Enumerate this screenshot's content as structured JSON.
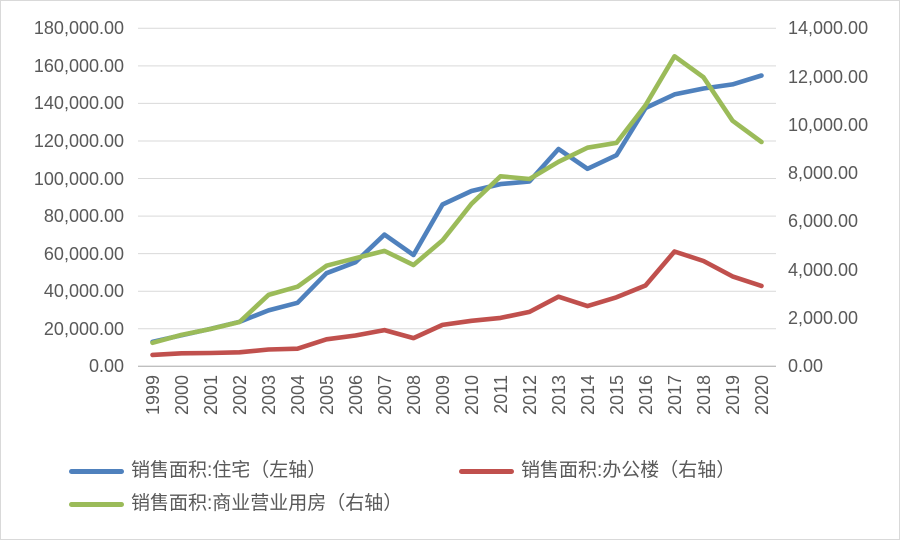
{
  "chart_data": {
    "type": "line",
    "title": "",
    "x": [
      "1999",
      "2000",
      "2001",
      "2002",
      "2003",
      "2004",
      "2005",
      "2006",
      "2007",
      "2008",
      "2009",
      "2010",
      "2011",
      "2012",
      "2013",
      "2014",
      "2015",
      "2016",
      "2017",
      "2018",
      "2019",
      "2020"
    ],
    "series": [
      {
        "id": "residential",
        "name": "销售面积:住宅（左轴）",
        "axis": "left",
        "color": "#4F81BD",
        "values": [
          12997.9,
          16570.3,
          19938.8,
          23702.3,
          29778.9,
          33819.9,
          49587.8,
          55423.0,
          70135.9,
          59280.4,
          86184.9,
          93376.6,
          97030.5,
          98467.5,
          115723.3,
          105182.2,
          112406.4,
          137540.1,
          144788.7,
          147929.3,
          150144.7,
          154878.3
        ]
      },
      {
        "id": "office",
        "name": "销售面积:办公楼（右轴）",
        "axis": "right",
        "color": "#C0504D",
        "values": [
          473.1,
          536.9,
          552.6,
          577.9,
          696.9,
          730.3,
          1117.4,
          1274.9,
          1498.9,
          1169.7,
          1713.5,
          1884.7,
          2006.6,
          2253.8,
          2882.6,
          2495.0,
          2858.6,
          3346.0,
          4756.4,
          4363.2,
          3723.4,
          3331.9
        ]
      },
      {
        "id": "commercial",
        "name": "销售面积:商业营业用房（右轴）",
        "axis": "right",
        "color": "#9BBB59",
        "values": [
          972.1,
          1302.6,
          1545.7,
          1833.2,
          2958.5,
          3298.9,
          4164.9,
          4475.7,
          4777.9,
          4194.6,
          5216.7,
          6729.1,
          7870.0,
          7759.4,
          8468.4,
          9054.4,
          9254.8,
          10812.4,
          12838.3,
          11970.9,
          10172.9,
          9290.3
        ]
      }
    ],
    "left_axis": {
      "min": 0,
      "max": 180000,
      "step": 20000,
      "tick_format": "#,##0.00"
    },
    "right_axis": {
      "min": 0,
      "max": 14000,
      "step": 2000,
      "tick_format": "#,##0.00"
    },
    "grid": true,
    "gridline_color": "#D9D9D9",
    "axis_line_color": "#BFBFBF",
    "text_color": "#595959",
    "legend_position": "bottom"
  }
}
